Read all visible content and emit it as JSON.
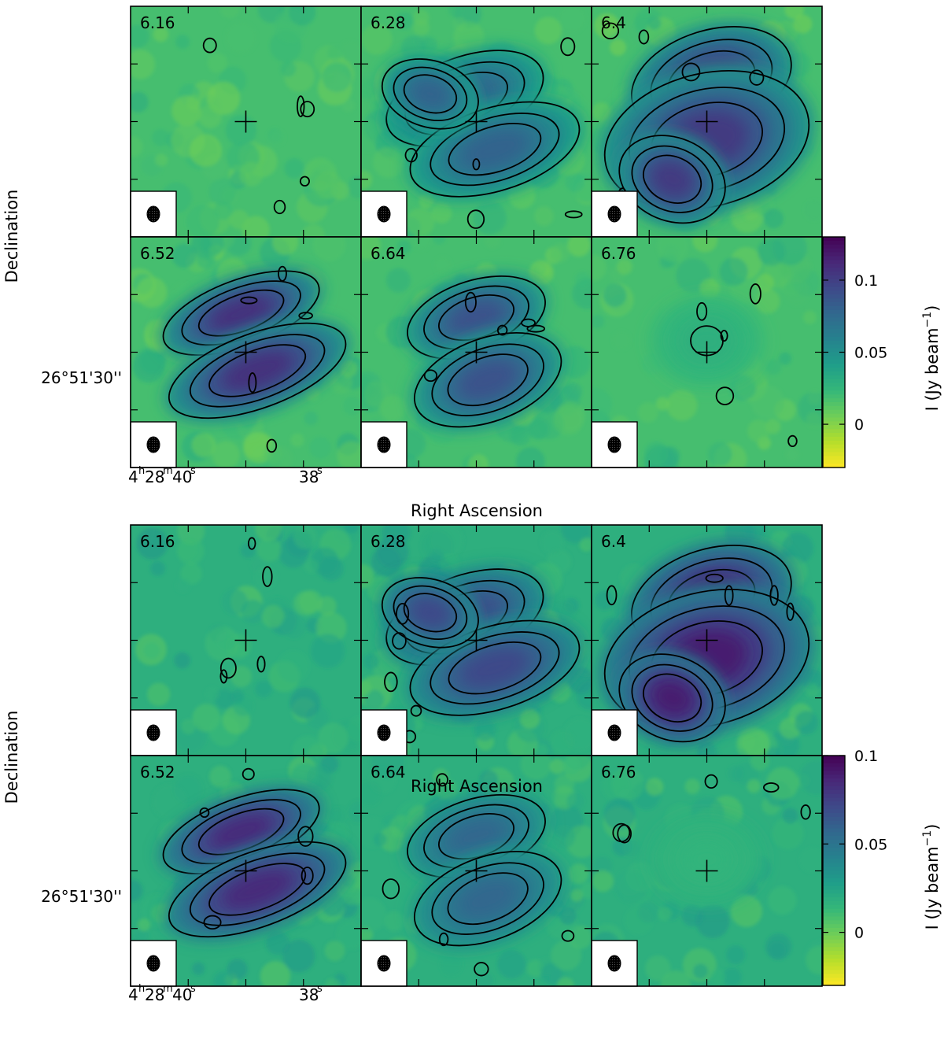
{
  "colors": {
    "viridis": [
      "#fde725",
      "#b5de2b",
      "#6ece58",
      "#35b779",
      "#1f9e89",
      "#26828e",
      "#31688e",
      "#3e4989",
      "#482878",
      "#440154"
    ],
    "background": "#ffffff",
    "contour": "#000000"
  },
  "chart_data": [
    {
      "type": "heatmap",
      "channels": [
        "6.16",
        "6.28",
        "6.4",
        "6.52",
        "6.64",
        "6.76"
      ],
      "channel_peaks": [
        0.02,
        0.085,
        0.11,
        0.115,
        0.095,
        0.03
      ],
      "xlabel": "Right Ascension",
      "ylabel": "Declination",
      "xticks": [
        {
          "h": "4",
          "m": "28",
          "s": "40",
          "sec": "38"
        }
      ],
      "ytick": "26°51'30''",
      "colorbar": {
        "label": "I (Jy beam",
        "exponent": "−1",
        "ticks": [
          "0.1",
          "0.05",
          "0"
        ],
        "tick_values": [
          0.1,
          0.05,
          0
        ],
        "range": [
          -0.03,
          0.13
        ]
      },
      "marker": "cross",
      "beam": "filled ellipse"
    },
    {
      "type": "heatmap",
      "channels": [
        "6.16",
        "6.28",
        "6.4",
        "6.52",
        "6.64",
        "6.76"
      ],
      "channel_peaks": [
        0.02,
        0.075,
        0.095,
        0.09,
        0.06,
        0.015
      ],
      "xlabel": "Right Ascension",
      "ylabel": "Declination",
      "xticks": [
        {
          "h": "4",
          "m": "28",
          "s": "40",
          "sec": "38"
        }
      ],
      "ytick": "26°51'30''",
      "colorbar": {
        "label": "I (Jy beam",
        "exponent": "−1",
        "ticks": [
          "0.1",
          "0.05",
          "0"
        ],
        "tick_values": [
          0.1,
          0.05,
          0
        ],
        "range": [
          -0.03,
          0.1
        ]
      },
      "marker": "cross",
      "beam": "filled ellipse"
    }
  ]
}
